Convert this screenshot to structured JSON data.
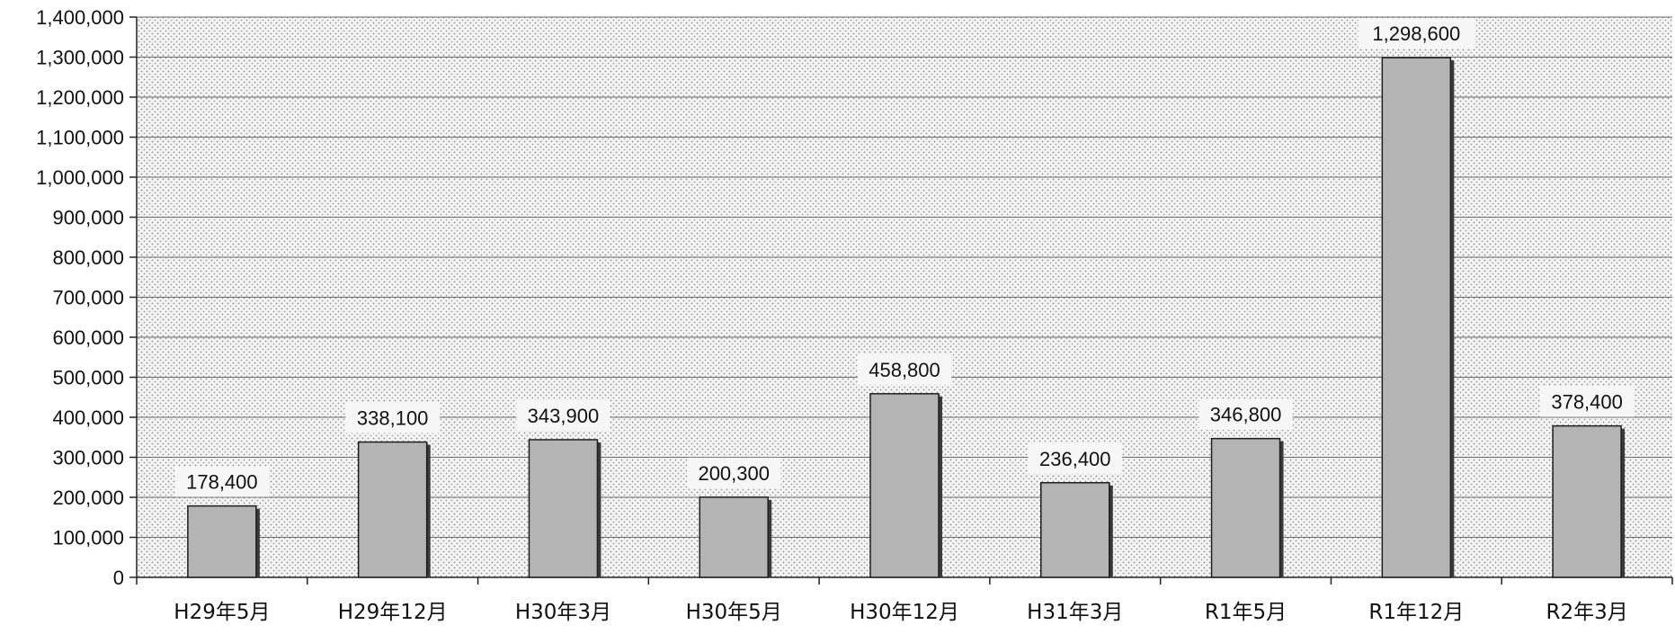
{
  "chart_data": {
    "type": "bar",
    "title": "",
    "xlabel": "",
    "ylabel": "",
    "categories": [
      "H29年5月",
      "H29年12月",
      "H30年3月",
      "H30年5月",
      "H30年12月",
      "H31年3月",
      "R1年5月",
      "R1年12月",
      "R2年3月"
    ],
    "values": [
      178400,
      338100,
      343900,
      200300,
      458800,
      236400,
      346800,
      1298600,
      378400
    ],
    "value_labels": [
      "178,400",
      "338,100",
      "343,900",
      "200,300",
      "458,800",
      "236,400",
      "346,800",
      "1,298,600",
      "378,400"
    ],
    "ylim": [
      0,
      1400000
    ],
    "yticks": [
      0,
      100000,
      200000,
      300000,
      400000,
      500000,
      600000,
      700000,
      800000,
      900000,
      1000000,
      1100000,
      1200000,
      1300000,
      1400000
    ],
    "ytick_labels": [
      "0",
      "100,000",
      "200,000",
      "300,000",
      "400,000",
      "500,000",
      "600,000",
      "700,000",
      "800,000",
      "900,000",
      "1,000,000",
      "1,100,000",
      "1,200,000",
      "1,300,000",
      "1,400,000"
    ],
    "grid": true,
    "legend": false,
    "colors": {
      "bar_fill": "#b4b4b4",
      "bar_edge": "#1e1e1e",
      "bar_shadow": "#3a3a3a",
      "plot_background": "#f4f4f4",
      "gridline": "#6a6a6a",
      "label_background": "#f6f6f6"
    }
  }
}
